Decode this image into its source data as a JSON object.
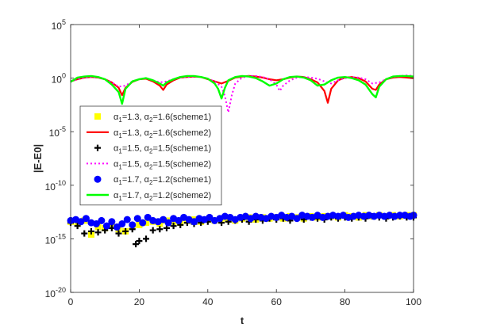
{
  "chart_data": {
    "type": "line",
    "xlabel": "t",
    "ylabel": "|E-E0|",
    "xlim": [
      0,
      100
    ],
    "ylim_exponent": [
      -20,
      5
    ],
    "y_scale": "log",
    "x_ticks": [
      "0",
      "20",
      "40",
      "60",
      "80",
      "100"
    ],
    "y_ticks": [
      {
        "exp": 5,
        "base": "10",
        "sup": "5"
      },
      {
        "exp": 0,
        "base": "10",
        "sup": "0"
      },
      {
        "exp": -5,
        "base": "10",
        "sup": "-5"
      },
      {
        "exp": -10,
        "base": "10",
        "sup": "-10"
      },
      {
        "exp": -15,
        "base": "10",
        "sup": "-15"
      },
      {
        "exp": -20,
        "base": "10",
        "sup": "-20"
      }
    ],
    "legend_position": "left",
    "series": [
      {
        "legend": {
          "a1": "1.3",
          "a2": "1.6",
          "scheme": "(scheme1)"
        },
        "style": "square",
        "color": "#FFFF00",
        "x": [
          0,
          2,
          4,
          6,
          8,
          10,
          12,
          14,
          16,
          18,
          20,
          22,
          24,
          26,
          28,
          30,
          32,
          34,
          36,
          38,
          40,
          42,
          44,
          46,
          48,
          50,
          52,
          54,
          56,
          58,
          60,
          62,
          64,
          66,
          68,
          70,
          72,
          74,
          76,
          78,
          80,
          82,
          84,
          86,
          88,
          90,
          92,
          94,
          96,
          98,
          100
        ],
        "log_y": [
          -13.4,
          -13.5,
          -13.3,
          -14.6,
          -13.9,
          -14.0,
          -13.6,
          -14.1,
          -14.3,
          -13.8,
          -13.7,
          -13.5,
          -13.4,
          -13.6,
          -13.3,
          -13.4,
          -13.5,
          -13.3,
          -13.2,
          -13.4,
          -13.2,
          -13.3,
          -13.1,
          -13.2,
          -13.3,
          -13.1,
          -13.0,
          -13.2,
          -13.0,
          -13.1,
          -13.0,
          -13.1,
          -12.9,
          -13.0,
          -13.1,
          -12.9,
          -13.0,
          -12.9,
          -12.9,
          -13.0,
          -12.8,
          -12.9,
          -13.0,
          -12.8,
          -12.9,
          -12.8,
          -12.9,
          -12.8,
          -12.9,
          -12.8,
          -12.8
        ]
      },
      {
        "legend": {
          "a1": "1.3",
          "a2": "1.6",
          "scheme": "(scheme2)"
        },
        "style": "line",
        "color": "#FF0000",
        "width": 2.2,
        "x": [
          0,
          2,
          4,
          6,
          8,
          10,
          12,
          14,
          15,
          16,
          18,
          20,
          22,
          24,
          26,
          27,
          28,
          30,
          32,
          34,
          36,
          38,
          40,
          42,
          44,
          46,
          48,
          50,
          52,
          54,
          56,
          58,
          60,
          62,
          64,
          66,
          68,
          70,
          72,
          74,
          75,
          76,
          78,
          80,
          82,
          84,
          86,
          88,
          89,
          90,
          92,
          94,
          96,
          98,
          100
        ],
        "log_y": [
          -0.3,
          -0.1,
          0.05,
          0.1,
          0.05,
          -0.1,
          -0.4,
          -0.9,
          -1.6,
          -0.9,
          -0.35,
          -0.1,
          -0.05,
          -0.3,
          -0.7,
          -1.1,
          -0.6,
          -0.2,
          0.05,
          0.1,
          0.15,
          0.1,
          -0.1,
          -0.3,
          -0.5,
          -0.25,
          0.05,
          0.15,
          0.2,
          0.15,
          0.05,
          -0.1,
          -0.2,
          -0.1,
          0.05,
          0.15,
          0.1,
          -0.1,
          -0.4,
          -1.2,
          -2.3,
          -1.0,
          -0.2,
          0.05,
          0.1,
          0.0,
          -0.3,
          -1.0,
          -1.1,
          -0.6,
          -0.1,
          0.05,
          0.1,
          0.05,
          0.0
        ]
      },
      {
        "legend": {
          "a1": "1.5",
          "a2": "1.5",
          "scheme": "(scheme1)"
        },
        "style": "plus",
        "color": "#000000",
        "x": [
          0,
          2,
          4,
          6,
          8,
          10,
          12,
          14,
          16,
          18,
          19,
          20,
          22,
          24,
          26,
          28,
          30,
          32,
          34,
          36,
          38,
          40,
          42,
          44,
          46,
          48,
          50,
          52,
          54,
          56,
          58,
          60,
          62,
          64,
          66,
          68,
          70,
          72,
          74,
          76,
          78,
          80,
          82,
          84,
          86,
          88,
          90,
          92,
          94,
          96,
          98,
          100
        ],
        "log_y": [
          -13.5,
          -13.8,
          -14.5,
          -14.3,
          -14.4,
          -14.2,
          -14.0,
          -14.5,
          -14.3,
          -14.1,
          -15.5,
          -15.2,
          -15.0,
          -14.2,
          -14.1,
          -14.0,
          -13.8,
          -13.7,
          -13.5,
          -13.6,
          -13.5,
          -13.4,
          -13.3,
          -13.5,
          -13.4,
          -13.3,
          -13.2,
          -13.4,
          -13.2,
          -13.3,
          -13.1,
          -13.2,
          -13.1,
          -13.3,
          -13.1,
          -13.2,
          -13.0,
          -13.1,
          -13.2,
          -13.0,
          -13.1,
          -13.0,
          -13.1,
          -13.0,
          -13.1,
          -12.9,
          -13.0,
          -13.1,
          -13.0,
          -12.9,
          -13.0,
          -13.0
        ]
      },
      {
        "legend": {
          "a1": "1.5",
          "a2": "1.5",
          "scheme": "(scheme2)"
        },
        "style": "dotted",
        "color": "#FF00FF",
        "width": 2,
        "x": [
          0,
          2,
          4,
          6,
          8,
          10,
          12,
          14,
          16,
          18,
          20,
          22,
          24,
          26,
          28,
          30,
          32,
          34,
          36,
          38,
          40,
          42,
          44,
          45,
          46,
          47,
          48,
          50,
          52,
          54,
          56,
          58,
          60,
          61,
          62,
          64,
          66,
          68,
          70,
          72,
          74,
          76,
          78,
          80,
          82,
          84,
          86,
          88,
          90,
          92,
          94,
          96,
          98,
          100
        ],
        "log_y": [
          -0.3,
          -0.1,
          0.05,
          0.1,
          0.05,
          -0.1,
          -0.4,
          -0.8,
          -0.7,
          -0.3,
          -0.1,
          0.0,
          -0.2,
          -0.4,
          -0.3,
          -0.1,
          0.05,
          0.1,
          0.15,
          0.1,
          -0.05,
          -0.3,
          -0.8,
          -1.7,
          -3.2,
          -1.6,
          -0.5,
          0.05,
          0.2,
          0.2,
          0.1,
          -0.1,
          -0.6,
          -1.2,
          -0.7,
          -0.2,
          0.05,
          0.1,
          0.05,
          -0.05,
          -0.3,
          -0.5,
          -0.2,
          0.0,
          0.1,
          0.05,
          -0.1,
          -0.5,
          -0.4,
          -0.1,
          0.1,
          0.2,
          0.25,
          0.2
        ]
      },
      {
        "legend": {
          "a1": "1.7",
          "a2": "1.2",
          "scheme": "(scheme1)"
        },
        "style": "circle",
        "color": "#0000FF",
        "x": [
          0,
          1.5,
          3,
          4.5,
          6,
          7.5,
          9,
          10.5,
          12,
          13.5,
          15,
          16.5,
          18,
          19.5,
          21,
          22.5,
          24,
          25.5,
          27,
          28.5,
          30,
          31.5,
          33,
          34.5,
          36,
          37.5,
          39,
          40.5,
          42,
          43.5,
          45,
          46.5,
          48,
          49.5,
          51,
          52.5,
          54,
          55.5,
          57,
          58.5,
          60,
          61.5,
          63,
          64.5,
          66,
          67.5,
          69,
          70.5,
          72,
          73.5,
          75,
          76.5,
          78,
          79.5,
          81,
          82.5,
          84,
          85.5,
          87,
          88.5,
          90,
          91.5,
          93,
          94.5,
          96,
          97.5,
          99,
          100
        ],
        "log_y": [
          -13.3,
          -13.2,
          -13.4,
          -13.1,
          -13.5,
          -13.6,
          -13.3,
          -13.8,
          -13.4,
          -13.9,
          -13.6,
          -13.2,
          -13.7,
          -13.1,
          -13.5,
          -13.0,
          -13.3,
          -13.4,
          -13.2,
          -13.5,
          -13.1,
          -13.3,
          -13.0,
          -13.2,
          -13.4,
          -13.1,
          -13.2,
          -13.0,
          -13.3,
          -13.1,
          -12.9,
          -13.0,
          -13.2,
          -13.0,
          -12.9,
          -13.1,
          -12.9,
          -13.0,
          -13.1,
          -12.9,
          -13.0,
          -12.8,
          -13.0,
          -12.9,
          -13.1,
          -12.8,
          -12.9,
          -13.0,
          -12.8,
          -13.0,
          -12.9,
          -12.8,
          -12.9,
          -12.8,
          -13.0,
          -12.9,
          -12.8,
          -12.9,
          -12.8,
          -12.9,
          -12.8,
          -12.9,
          -12.8,
          -12.9,
          -12.8,
          -12.8,
          -12.9,
          -12.8
        ]
      },
      {
        "legend": {
          "a1": "1.7",
          "a2": "1.2",
          "scheme": "(scheme2)"
        },
        "style": "line",
        "color": "#00FF00",
        "width": 2.4,
        "x": [
          0,
          2,
          4,
          6,
          8,
          10,
          12,
          14,
          15,
          16,
          18,
          20,
          22,
          24,
          26,
          27,
          28,
          30,
          32,
          34,
          36,
          38,
          40,
          42,
          43,
          44,
          45,
          46,
          48,
          50,
          52,
          54,
          56,
          58,
          60,
          62,
          64,
          66,
          68,
          70,
          72,
          74,
          76,
          78,
          80,
          82,
          84,
          86,
          88,
          89,
          90,
          92,
          94,
          96,
          98,
          100
        ],
        "log_y": [
          -0.35,
          0.05,
          0.15,
          0.2,
          0.1,
          -0.1,
          -0.6,
          -1.3,
          -2.4,
          -1.0,
          -0.3,
          -0.1,
          0.0,
          -0.2,
          -0.5,
          -0.7,
          -0.4,
          -0.1,
          0.1,
          0.2,
          0.2,
          0.1,
          -0.05,
          -0.5,
          -1.0,
          -1.9,
          -0.9,
          -0.2,
          0.1,
          0.2,
          0.15,
          0.0,
          -0.3,
          -0.7,
          -0.5,
          -0.1,
          0.1,
          0.15,
          0.05,
          -0.2,
          -0.7,
          -0.6,
          -0.2,
          0.05,
          0.1,
          0.0,
          -0.2,
          -0.6,
          -1.5,
          -1.8,
          -0.8,
          -0.1,
          0.15,
          0.2,
          0.2,
          0.15
        ]
      }
    ]
  }
}
